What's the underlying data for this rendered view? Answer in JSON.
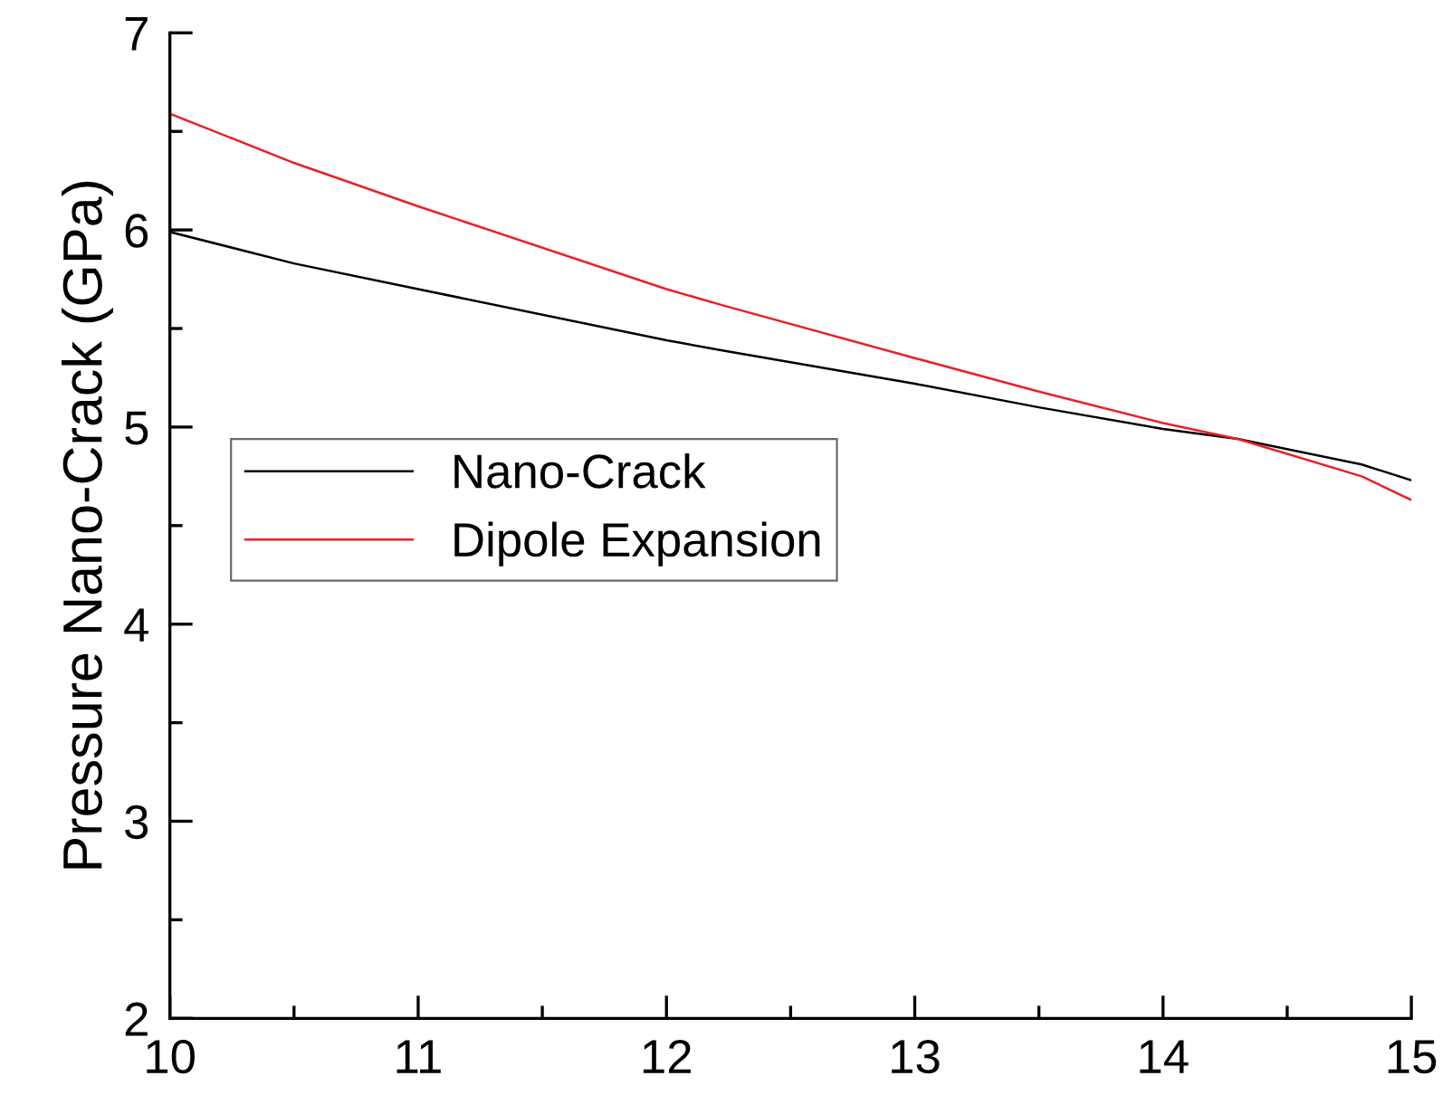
{
  "chart_data": {
    "type": "line",
    "ylabel": "Pressure Nano-Crack (GPa)",
    "x": [
      10,
      10.5,
      11,
      12,
      12.22,
      13,
      13.5,
      14,
      14.3,
      14.8,
      15
    ],
    "series": [
      {
        "name": "Nano-Crack",
        "color": "#000000",
        "values": [
          5.99,
          5.83,
          5.7,
          5.44,
          5.39,
          5.22,
          5.1,
          4.99,
          4.94,
          4.81,
          4.73
        ]
      },
      {
        "name": "Dipole Expansion",
        "color": "#e8202a",
        "values": [
          6.59,
          6.34,
          6.12,
          5.7,
          5.62,
          5.35,
          5.18,
          5.02,
          4.94,
          4.75,
          4.63
        ]
      }
    ],
    "xlim": [
      10,
      15
    ],
    "xticks": [
      10,
      11,
      12,
      13,
      14,
      15
    ],
    "ylim": [
      2,
      7
    ],
    "yticks": [
      2,
      3,
      4,
      5,
      6,
      7
    ],
    "grid": false,
    "legend": "left",
    "marker": "none",
    "line_style": "solid"
  }
}
